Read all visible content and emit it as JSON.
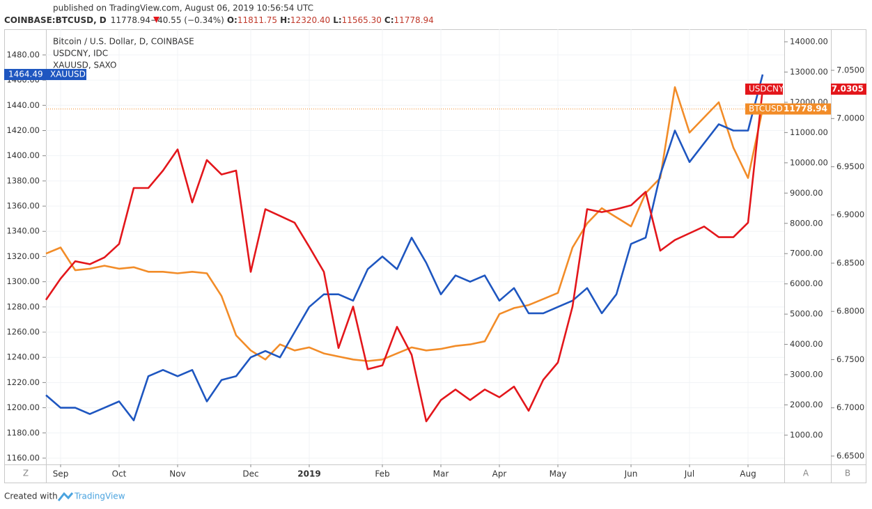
{
  "header": {
    "published": "published on TradingView.com, August 06, 2019 10:56:54 UTC",
    "symbol": "COINBASE:BTCUSD, D",
    "last": "11778.94",
    "change": "−40.55 (−0.34%)",
    "ohlc": [
      [
        "O:",
        "11811.75"
      ],
      [
        "H:",
        "12320.40"
      ],
      [
        "L:",
        "11565.30"
      ],
      [
        "C:",
        "11778.94"
      ]
    ]
  },
  "chart_data": {
    "type": "line",
    "legend": [
      "Bitcoin / U.S. Dollar, D, COINBASE",
      "USDCNY, IDC",
      "XAUUSD, SAXO"
    ],
    "categories": [
      null,
      "Sep",
      null,
      null,
      null,
      "Oct",
      null,
      null,
      null,
      "Nov",
      null,
      null,
      null,
      null,
      "Dec",
      null,
      null,
      null,
      "2019",
      null,
      null,
      null,
      null,
      "Feb",
      null,
      null,
      null,
      "Mar",
      null,
      null,
      null,
      "Apr",
      null,
      null,
      null,
      "May",
      null,
      null,
      null,
      null,
      "Jun",
      null,
      null,
      null,
      "Jul",
      null,
      null,
      null,
      "Aug",
      null
    ],
    "ylim": [
      1155,
      1500.4
    ],
    "yticks": [
      {
        "value": 1160,
        "label": "1160.00"
      },
      {
        "value": 1180,
        "label": "1180.00"
      },
      {
        "value": 1200,
        "label": "1200.00"
      },
      {
        "value": 1220,
        "label": "1220.00"
      },
      {
        "value": 1240,
        "label": "1240.00"
      },
      {
        "value": 1260,
        "label": "1260.00"
      },
      {
        "value": 1280,
        "label": "1280.00"
      },
      {
        "value": 1300,
        "label": "1300.00"
      },
      {
        "value": 1320,
        "label": "1320.00"
      },
      {
        "value": 1340,
        "label": "1340.00"
      },
      {
        "value": 1360,
        "label": "1360.00"
      },
      {
        "value": 1380,
        "label": "1380.00"
      },
      {
        "value": 1400,
        "label": "1400.00"
      },
      {
        "value": 1420,
        "label": "1420.00"
      },
      {
        "value": 1440,
        "label": "1440.00"
      },
      {
        "value": 1460,
        "label": "1460.00"
      },
      {
        "value": 1480,
        "label": "1480.00"
      }
    ],
    "y2lim": [
      33,
      14414
    ],
    "y2ticks": [
      {
        "value": 1000,
        "label": "1000.00"
      },
      {
        "value": 2000,
        "label": "2000.00"
      },
      {
        "value": 3000,
        "label": "3000.00"
      },
      {
        "value": 4000,
        "label": "4000.00"
      },
      {
        "value": 5000,
        "label": "5000.00"
      },
      {
        "value": 6000,
        "label": "6000.00"
      },
      {
        "value": 7000,
        "label": "7000.00"
      },
      {
        "value": 8000,
        "label": "8000.00"
      },
      {
        "value": 9000,
        "label": "9000.00"
      },
      {
        "value": 10000,
        "label": "10000.00"
      },
      {
        "value": 11000,
        "label": "11000.00"
      },
      {
        "value": 12000,
        "label": "12000.00"
      },
      {
        "value": 13000,
        "label": "13000.00"
      },
      {
        "value": 14000,
        "label": "14000.00"
      }
    ],
    "y3lim": [
      6.6413,
      7.0926
    ],
    "y3ticks": [
      {
        "value": 6.65,
        "label": "6.6500"
      },
      {
        "value": 6.7,
        "label": "6.7000"
      },
      {
        "value": 6.75,
        "label": "6.7500"
      },
      {
        "value": 6.8,
        "label": "6.8000"
      },
      {
        "value": 6.85,
        "label": "6.8500"
      },
      {
        "value": 6.9,
        "label": "6.9000"
      },
      {
        "value": 6.95,
        "label": "6.9500"
      },
      {
        "value": 7,
        "label": "7.0000"
      },
      {
        "value": 7.05,
        "label": "7.0500"
      }
    ],
    "grid": true,
    "series": [
      {
        "name": "XAUUSD",
        "color": "#1e56c0",
        "axis": "y",
        "values": [
          1210,
          1200,
          1200,
          1195,
          1200,
          1205,
          1190,
          1225,
          1230,
          1225,
          1230,
          1205,
          1222,
          1225,
          1240,
          1245,
          1240,
          1260,
          1280,
          1290,
          1290,
          1285,
          1310,
          1320,
          1310,
          1335,
          1315,
          1290,
          1305,
          1300,
          1305,
          1285,
          1295,
          1275,
          1275,
          1280,
          1285,
          1295,
          1275,
          1290,
          1330,
          1335,
          1385,
          1420,
          1395,
          1410,
          1425,
          1420,
          1420,
          1464.49
        ]
      },
      {
        "name": "BTCUSD",
        "color": "#f28c28",
        "axis": "y2",
        "values": [
          7000,
          7200,
          6450,
          6500,
          6600,
          6500,
          6550,
          6400,
          6400,
          6350,
          6400,
          6350,
          5600,
          4300,
          3800,
          3500,
          4000,
          3800,
          3900,
          3700,
          3600,
          3500,
          3450,
          3500,
          3700,
          3900,
          3800,
          3850,
          3950,
          4000,
          4100,
          5000,
          5200,
          5300,
          5500,
          5700,
          7200,
          8000,
          8500,
          8200,
          7900,
          9000,
          9500,
          12500,
          11000,
          11500,
          12000,
          10500,
          9500,
          11778.94
        ]
      },
      {
        "name": "USDCNY",
        "color": "#e3161b",
        "axis": "y3",
        "values": [
          6.812,
          6.834,
          6.852,
          6.849,
          6.856,
          6.87,
          6.928,
          6.928,
          6.946,
          6.968,
          6.913,
          6.957,
          6.942,
          6.946,
          6.841,
          6.906,
          6.899,
          6.892,
          6.867,
          6.841,
          6.762,
          6.805,
          6.74,
          6.744,
          6.784,
          6.755,
          6.686,
          6.708,
          6.719,
          6.708,
          6.719,
          6.711,
          6.722,
          6.697,
          6.729,
          6.747,
          6.805,
          6.906,
          6.903,
          6.906,
          6.91,
          6.924,
          6.863,
          6.874,
          6.881,
          6.888,
          6.877,
          6.877,
          6.892,
          7.0305
        ]
      }
    ]
  },
  "footer": {
    "created": "Created with",
    "brand": "TradingView"
  }
}
